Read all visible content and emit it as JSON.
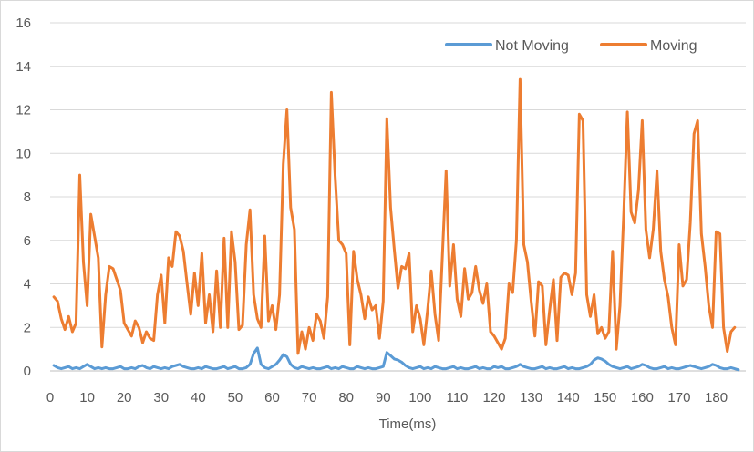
{
  "chart_data": {
    "type": "line",
    "title": "",
    "xlabel": "Time(ms)",
    "ylabel": "",
    "xlim": [
      0,
      188
    ],
    "ylim": [
      0,
      16
    ],
    "x_ticks": [
      0,
      10,
      20,
      30,
      40,
      50,
      60,
      70,
      80,
      90,
      100,
      110,
      120,
      130,
      140,
      150,
      160,
      170,
      180
    ],
    "y_ticks": [
      0,
      2,
      4,
      6,
      8,
      10,
      12,
      14,
      16
    ],
    "grid": "horizontal",
    "legend": "top-right",
    "series": [
      {
        "name": "Not Moving",
        "color": "#5b9bd5",
        "values": [
          0.25,
          0.15,
          0.1,
          0.15,
          0.2,
          0.1,
          0.15,
          0.1,
          0.2,
          0.3,
          0.2,
          0.1,
          0.15,
          0.1,
          0.15,
          0.1,
          0.1,
          0.15,
          0.2,
          0.1,
          0.1,
          0.15,
          0.1,
          0.2,
          0.25,
          0.15,
          0.1,
          0.2,
          0.15,
          0.1,
          0.15,
          0.1,
          0.2,
          0.25,
          0.3,
          0.2,
          0.15,
          0.1,
          0.1,
          0.15,
          0.1,
          0.2,
          0.15,
          0.1,
          0.1,
          0.15,
          0.2,
          0.1,
          0.15,
          0.2,
          0.1,
          0.1,
          0.15,
          0.3,
          0.8,
          1.05,
          0.3,
          0.15,
          0.1,
          0.2,
          0.3,
          0.5,
          0.75,
          0.65,
          0.3,
          0.15,
          0.1,
          0.2,
          0.15,
          0.1,
          0.15,
          0.1,
          0.1,
          0.15,
          0.2,
          0.1,
          0.15,
          0.1,
          0.2,
          0.15,
          0.1,
          0.1,
          0.2,
          0.15,
          0.1,
          0.15,
          0.1,
          0.1,
          0.15,
          0.2,
          0.85,
          0.7,
          0.55,
          0.5,
          0.4,
          0.25,
          0.15,
          0.1,
          0.15,
          0.2,
          0.1,
          0.15,
          0.1,
          0.2,
          0.15,
          0.1,
          0.1,
          0.15,
          0.2,
          0.1,
          0.15,
          0.1,
          0.1,
          0.15,
          0.2,
          0.1,
          0.15,
          0.1,
          0.1,
          0.2,
          0.15,
          0.2,
          0.1,
          0.1,
          0.15,
          0.2,
          0.3,
          0.2,
          0.15,
          0.1,
          0.1,
          0.15,
          0.2,
          0.1,
          0.15,
          0.1,
          0.1,
          0.15,
          0.2,
          0.1,
          0.15,
          0.1,
          0.1,
          0.15,
          0.2,
          0.3,
          0.5,
          0.6,
          0.55,
          0.45,
          0.3,
          0.2,
          0.15,
          0.1,
          0.15,
          0.2,
          0.1,
          0.15,
          0.2,
          0.3,
          0.25,
          0.15,
          0.1,
          0.1,
          0.15,
          0.2,
          0.1,
          0.15,
          0.1,
          0.1,
          0.15,
          0.2,
          0.25,
          0.2,
          0.15,
          0.1,
          0.15,
          0.2,
          0.3,
          0.25,
          0.15,
          0.1,
          0.1,
          0.15,
          0.1,
          0.05
        ]
      },
      {
        "name": "Moving",
        "color": "#ed7d31",
        "values": [
          3.4,
          3.2,
          2.4,
          1.9,
          2.5,
          1.8,
          2.2,
          9.0,
          5.0,
          3.0,
          7.2,
          6.2,
          5.2,
          1.1,
          3.5,
          4.8,
          4.7,
          4.2,
          3.7,
          2.2,
          1.9,
          1.6,
          2.3,
          2.0,
          1.3,
          1.8,
          1.5,
          1.4,
          3.5,
          4.4,
          2.2,
          5.2,
          4.8,
          6.4,
          6.2,
          5.5,
          4.0,
          2.6,
          4.5,
          3.0,
          5.4,
          2.2,
          3.5,
          1.8,
          4.6,
          2.0,
          6.1,
          2.0,
          6.4,
          5.0,
          1.9,
          2.1,
          5.8,
          7.4,
          3.5,
          2.4,
          2.0,
          6.2,
          2.3,
          3.0,
          1.9,
          3.5,
          9.5,
          12.0,
          7.5,
          6.5,
          0.8,
          1.8,
          1.0,
          2.0,
          1.4,
          2.6,
          2.3,
          1.5,
          3.4,
          12.8,
          9.0,
          6.0,
          5.8,
          5.4,
          1.2,
          5.5,
          4.2,
          3.5,
          2.4,
          3.4,
          2.8,
          3.0,
          1.5,
          3.2,
          11.6,
          7.5,
          5.6,
          3.8,
          4.8,
          4.7,
          5.4,
          1.8,
          3.0,
          2.4,
          1.2,
          2.8,
          4.6,
          2.6,
          1.4,
          5.3,
          9.2,
          3.9,
          5.8,
          3.3,
          2.5,
          4.7,
          3.3,
          3.6,
          4.8,
          3.7,
          3.1,
          4.0,
          1.8,
          1.6,
          1.3,
          1.0,
          1.5,
          4.0,
          3.6,
          6.0,
          13.4,
          5.8,
          5.0,
          3.2,
          1.6,
          4.1,
          3.9,
          1.2,
          2.8,
          4.2,
          1.4,
          4.3,
          4.5,
          4.4,
          3.5,
          4.5,
          11.8,
          11.5,
          3.5,
          2.5,
          3.5,
          1.7,
          2.0,
          1.5,
          1.8,
          5.5,
          1.0,
          3.0,
          7.2,
          11.9,
          7.3,
          6.8,
          8.3,
          11.5,
          6.5,
          5.2,
          6.5,
          9.2,
          5.5,
          4.2,
          3.4,
          2.0,
          1.2,
          5.8,
          3.9,
          4.2,
          6.8,
          10.9,
          11.5,
          6.3,
          4.8,
          3.0,
          2.0,
          6.4,
          6.3,
          2.0,
          0.9,
          1.8,
          2.0
        ]
      }
    ]
  }
}
